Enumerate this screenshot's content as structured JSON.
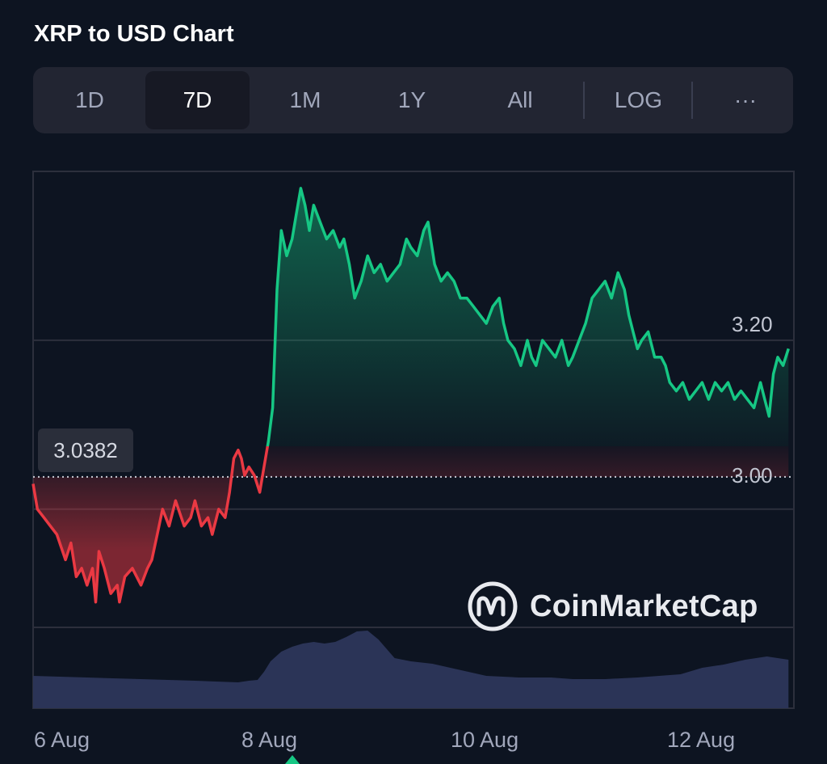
{
  "header": {
    "title": "XRP to USD Chart"
  },
  "tabs": [
    {
      "label": "1D",
      "active": false
    },
    {
      "label": "7D",
      "active": true
    },
    {
      "label": "1M",
      "active": false
    },
    {
      "label": "1Y",
      "active": false
    },
    {
      "label": "All",
      "active": false
    },
    {
      "label": "LOG",
      "active": false
    },
    {
      "label": "···",
      "active": false
    }
  ],
  "watermark": {
    "text": "CoinMarketCap"
  },
  "colors": {
    "up": "#16c784",
    "down": "#ea3943",
    "volume": "#2b3457",
    "background": "#0d1421"
  },
  "chart_data": {
    "type": "line",
    "title": "XRP to USD Chart",
    "baseline": {
      "value": 3.0382,
      "label": "3.0382"
    },
    "y_ticks": [
      {
        "value": 3.0,
        "label": "3.00"
      },
      {
        "value": 3.2,
        "label": "3.20"
      }
    ],
    "ylim": [
      2.86,
      3.4
    ],
    "x_ticks": [
      {
        "t": 0,
        "label": "6 Aug"
      },
      {
        "t": 2,
        "label": "8 Aug"
      },
      {
        "t": 4,
        "label": "10 Aug"
      },
      {
        "t": 6,
        "label": "12 Aug"
      }
    ],
    "xlim": [
      0,
      7.05
    ],
    "grid": true,
    "x_unit": "days since 6 Aug 00:00",
    "series": [
      {
        "name": "",
        "x": [
          0,
          0.04,
          0.1,
          0.16,
          0.22,
          0.3,
          0.35,
          0.4,
          0.45,
          0.5,
          0.55,
          0.58,
          0.61,
          0.66,
          0.72,
          0.78,
          0.8,
          0.85,
          0.92,
          1.0,
          1.06,
          1.1,
          1.15,
          1.2,
          1.26,
          1.32,
          1.4,
          1.46,
          1.5,
          1.56,
          1.62,
          1.66,
          1.72,
          1.78,
          1.82,
          1.86,
          1.9,
          1.93,
          1.96,
          2.0,
          2.05,
          2.1,
          2.14,
          2.18,
          2.22,
          2.26,
          2.3,
          2.35,
          2.4,
          2.44,
          2.48,
          2.52,
          2.56,
          2.6,
          2.66,
          2.72,
          2.78,
          2.84,
          2.88,
          2.93,
          2.98,
          3.04,
          3.1,
          3.16,
          3.22,
          3.28,
          3.34,
          3.4,
          3.46,
          3.5,
          3.56,
          3.62,
          3.66,
          3.72,
          3.78,
          3.84,
          3.9,
          3.96,
          4.02,
          4.08,
          4.14,
          4.2,
          4.26,
          4.32,
          4.36,
          4.4,
          4.46,
          4.52,
          4.58,
          4.62,
          4.66,
          4.72,
          4.78,
          4.84,
          4.9,
          4.96,
          5.0,
          5.06,
          5.12,
          5.18,
          5.24,
          5.3,
          5.36,
          5.42,
          5.48,
          5.52,
          5.56,
          5.6,
          5.64,
          5.7,
          5.76,
          5.82,
          5.86,
          5.9,
          5.96,
          6.02,
          6.08,
          6.14,
          6.2,
          6.26,
          6.32,
          6.38,
          6.44,
          6.5,
          6.56,
          6.62,
          6.68,
          6.74,
          6.78,
          6.82,
          6.86,
          6.9,
          6.95,
          7.0
        ],
        "y": [
          3.03,
          3.0,
          2.99,
          2.98,
          2.97,
          2.94,
          2.96,
          2.92,
          2.93,
          2.91,
          2.93,
          2.89,
          2.95,
          2.93,
          2.9,
          2.91,
          2.89,
          2.92,
          2.93,
          2.91,
          2.93,
          2.94,
          2.97,
          3.0,
          2.98,
          3.01,
          2.98,
          2.99,
          3.01,
          2.98,
          2.99,
          2.97,
          3.0,
          2.99,
          3.02,
          3.06,
          3.07,
          3.06,
          3.04,
          3.05,
          3.04,
          3.02,
          3.05,
          3.08,
          3.12,
          3.26,
          3.33,
          3.3,
          3.32,
          3.35,
          3.38,
          3.36,
          3.33,
          3.36,
          3.34,
          3.32,
          3.33,
          3.31,
          3.32,
          3.29,
          3.25,
          3.27,
          3.3,
          3.28,
          3.29,
          3.27,
          3.28,
          3.29,
          3.32,
          3.31,
          3.3,
          3.33,
          3.34,
          3.29,
          3.27,
          3.28,
          3.27,
          3.25,
          3.25,
          3.24,
          3.23,
          3.22,
          3.24,
          3.25,
          3.22,
          3.2,
          3.19,
          3.17,
          3.2,
          3.18,
          3.17,
          3.2,
          3.19,
          3.18,
          3.2,
          3.17,
          3.18,
          3.2,
          3.22,
          3.25,
          3.26,
          3.27,
          3.25,
          3.28,
          3.26,
          3.23,
          3.21,
          3.19,
          3.2,
          3.21,
          3.18,
          3.18,
          3.17,
          3.15,
          3.14,
          3.15,
          3.13,
          3.14,
          3.15,
          3.13,
          3.15,
          3.14,
          3.15,
          3.13,
          3.14,
          3.13,
          3.12,
          3.15,
          3.13,
          3.11,
          3.16,
          3.18,
          3.17,
          3.19
        ]
      }
    ],
    "volume": {
      "x": [
        0,
        0.5,
        1.0,
        1.5,
        1.9,
        2.0,
        2.08,
        2.14,
        2.2,
        2.3,
        2.4,
        2.5,
        2.6,
        2.7,
        2.8,
        2.9,
        3.0,
        3.1,
        3.2,
        3.35,
        3.5,
        3.7,
        4.0,
        4.2,
        4.5,
        4.8,
        5.0,
        5.3,
        5.6,
        5.8,
        6.0,
        6.2,
        6.4,
        6.6,
        6.8,
        7.0
      ],
      "y": [
        0.4,
        0.38,
        0.36,
        0.34,
        0.32,
        0.34,
        0.35,
        0.45,
        0.58,
        0.7,
        0.76,
        0.8,
        0.82,
        0.8,
        0.82,
        0.88,
        0.95,
        0.96,
        0.85,
        0.62,
        0.58,
        0.55,
        0.46,
        0.4,
        0.38,
        0.38,
        0.36,
        0.36,
        0.38,
        0.4,
        0.42,
        0.5,
        0.54,
        0.6,
        0.64,
        0.6
      ],
      "ylim": [
        0,
        1
      ]
    }
  }
}
